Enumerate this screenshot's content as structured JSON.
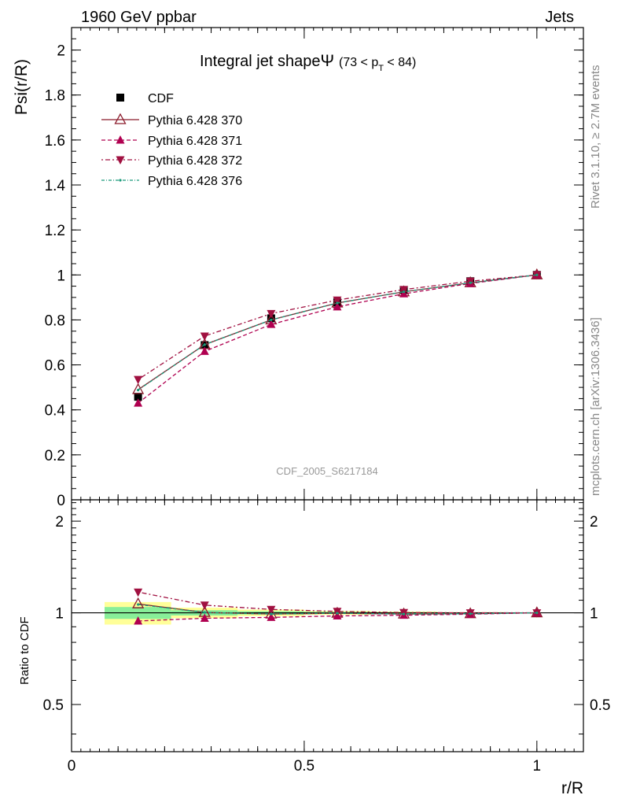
{
  "header": {
    "left": "1960 GeV ppbar",
    "right": "Jets",
    "side_top": "Rivet 3.1.10, ≥ 2.7M events",
    "side_bottom": "mcplots.cern.ch [arXiv:1306.3436]",
    "watermark": "CDF_2005_S6217184"
  },
  "colors": {
    "cdf": "#000000",
    "p370": "#8b1a2b",
    "p371": "#b00050",
    "p372": "#a01040",
    "p376": "#1a9a7a",
    "band_inner": "#88ee99",
    "band_outer": "#ffff99"
  },
  "chart_data": [
    {
      "type": "line",
      "title": "Integral jet shape",
      "title_symbol": "Ψ",
      "title_range": "(73 < p",
      "title_range_sub": "T",
      "title_range_end": " < 84)",
      "ylabel": "Psi(r/R)",
      "xlim": [
        0,
        1.1
      ],
      "ylim": [
        0,
        2.1
      ],
      "yticks": [
        0,
        0.2,
        0.4,
        0.6,
        0.8,
        1,
        1.2,
        1.4,
        1.6,
        1.8,
        2
      ],
      "ytick_labels": [
        "0",
        "0.2",
        "0.4",
        "0.6",
        "0.8",
        "1",
        "1.2",
        "1.4",
        "1.6",
        "1.8",
        "2"
      ],
      "x": [
        0.143,
        0.286,
        0.429,
        0.571,
        0.714,
        0.857,
        1.0
      ],
      "series": [
        {
          "name": "CDF",
          "values": [
            0.458,
            0.688,
            0.807,
            0.878,
            0.933,
            0.972,
            1.0
          ]
        },
        {
          "name": "Pythia 6.428 370",
          "values": [
            0.49,
            0.69,
            0.8,
            0.875,
            0.925,
            0.965,
            1.0
          ]
        },
        {
          "name": "Pythia 6.428 371",
          "values": [
            0.43,
            0.66,
            0.78,
            0.858,
            0.916,
            0.962,
            1.0
          ]
        },
        {
          "name": "Pythia 6.428 372",
          "values": [
            0.535,
            0.728,
            0.828,
            0.888,
            0.935,
            0.972,
            1.0
          ]
        },
        {
          "name": "Pythia 6.428 376",
          "values": [
            0.488,
            0.69,
            0.8,
            0.875,
            0.925,
            0.965,
            1.0
          ]
        }
      ]
    },
    {
      "type": "line",
      "ylabel": "Ratio to CDF",
      "xlabel": "r/R",
      "xlim": [
        0,
        1.1
      ],
      "ylim": [
        0.35,
        2.35
      ],
      "log_y": true,
      "yticks": [
        0.5,
        1,
        2
      ],
      "ytick_labels": [
        "0.5",
        "1",
        "2"
      ],
      "xticks": [
        0,
        0.5,
        1
      ],
      "xtick_labels": [
        "0",
        "0.5",
        "1"
      ],
      "x": [
        0.143,
        0.286,
        0.429,
        0.571,
        0.714,
        0.857,
        1.0
      ],
      "bins": [
        [
          0.071,
          0.214
        ],
        [
          0.214,
          0.357
        ],
        [
          0.357,
          0.5
        ],
        [
          0.5,
          0.643
        ],
        [
          0.643,
          0.786
        ],
        [
          0.786,
          0.929
        ],
        [
          0.929,
          1.071
        ]
      ],
      "band_inner": [
        0.045,
        0.02,
        0.012,
        0.008,
        0.005,
        0.003,
        0.001
      ],
      "band_outer": [
        0.085,
        0.04,
        0.025,
        0.015,
        0.01,
        0.005,
        0.002
      ],
      "series": [
        {
          "name": "Pythia 6.428 370",
          "values": [
            1.07,
            1.003,
            0.991,
            0.997,
            0.991,
            0.993,
            1.0
          ]
        },
        {
          "name": "Pythia 6.428 371",
          "values": [
            0.94,
            0.96,
            0.966,
            0.977,
            0.982,
            0.99,
            1.0
          ]
        },
        {
          "name": "Pythia 6.428 372",
          "values": [
            1.17,
            1.06,
            1.026,
            1.011,
            1.002,
            1.0,
            1.0
          ]
        },
        {
          "name": "Pythia 6.428 376",
          "values": [
            1.065,
            1.003,
            0.991,
            0.997,
            0.991,
            0.993,
            1.0
          ]
        }
      ]
    }
  ]
}
